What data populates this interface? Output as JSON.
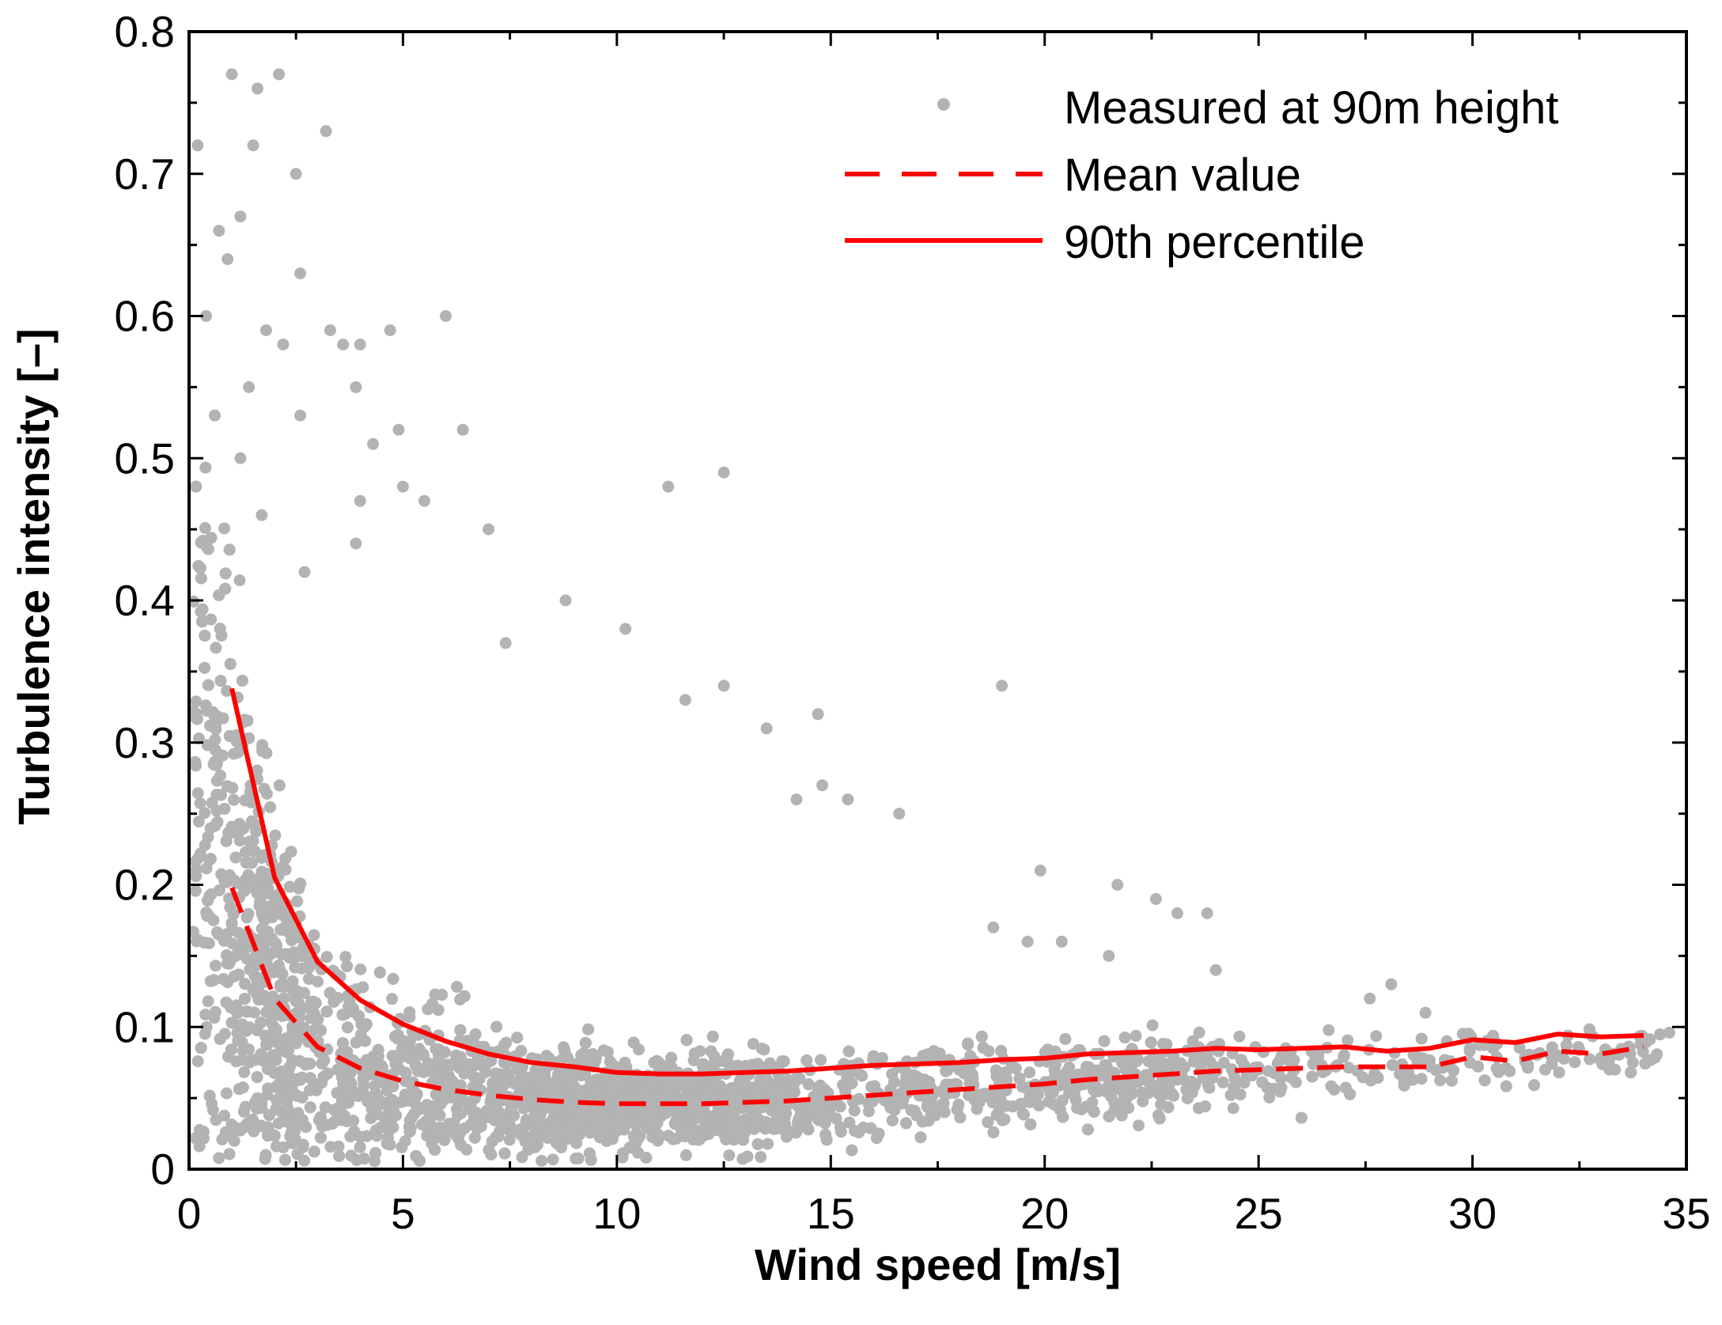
{
  "chart_data": {
    "type": "scatter",
    "title": "",
    "xlabel": "Wind speed [m/s]",
    "ylabel": "Turbulence intensity [–]",
    "xlim": [
      0,
      35
    ],
    "ylim": [
      0,
      0.8
    ],
    "x_ticks": [
      0,
      5,
      10,
      15,
      20,
      25,
      30,
      35
    ],
    "x_tick_labels": [
      "0",
      "5",
      "10",
      "15",
      "20",
      "25",
      "30",
      "35"
    ],
    "y_ticks": [
      0,
      0.1,
      0.2,
      0.3,
      0.4,
      0.5,
      0.6,
      0.7,
      0.8
    ],
    "y_tick_labels": [
      "0",
      "0.1",
      "0.2",
      "0.3",
      "0.4",
      "0.5",
      "0.6",
      "0.7",
      "0.8"
    ],
    "grid": false,
    "legend_position": "top-right",
    "colors": {
      "scatter": "#b3b3b3",
      "mean": "#ff0000",
      "percentile": "#ff0000"
    },
    "series": [
      {
        "name": "Measured at 90m height",
        "type": "scatter",
        "note": "dense measured cloud, representative sample",
        "points": [
          [
            0.2,
            0.72
          ],
          [
            1.0,
            0.77
          ],
          [
            1.6,
            0.76
          ],
          [
            2.1,
            0.77
          ],
          [
            1.5,
            0.72
          ],
          [
            3.2,
            0.73
          ],
          [
            0.7,
            0.66
          ],
          [
            1.2,
            0.67
          ],
          [
            0.9,
            0.64
          ],
          [
            2.5,
            0.7
          ],
          [
            0.4,
            0.6
          ],
          [
            2.6,
            0.63
          ],
          [
            6.0,
            0.6
          ],
          [
            1.8,
            0.59
          ],
          [
            2.2,
            0.58
          ],
          [
            3.3,
            0.59
          ],
          [
            4.0,
            0.58
          ],
          [
            4.7,
            0.59
          ],
          [
            3.6,
            0.58
          ],
          [
            3.9,
            0.55
          ],
          [
            6.4,
            0.52
          ],
          [
            2.6,
            0.53
          ],
          [
            4.9,
            0.52
          ],
          [
            4.3,
            0.51
          ],
          [
            1.4,
            0.55
          ],
          [
            0.6,
            0.53
          ],
          [
            1.2,
            0.5
          ],
          [
            5.0,
            0.48
          ],
          [
            11.2,
            0.48
          ],
          [
            12.5,
            0.49
          ],
          [
            1.7,
            0.46
          ],
          [
            4.0,
            0.47
          ],
          [
            5.5,
            0.47
          ],
          [
            3.9,
            0.44
          ],
          [
            7.0,
            0.45
          ],
          [
            2.7,
            0.42
          ],
          [
            8.8,
            0.4
          ],
          [
            10.2,
            0.38
          ],
          [
            7.4,
            0.37
          ],
          [
            19.0,
            0.34
          ],
          [
            12.5,
            0.34
          ],
          [
            13.5,
            0.31
          ],
          [
            14.7,
            0.32
          ],
          [
            11.6,
            0.33
          ],
          [
            16.6,
            0.25
          ],
          [
            14.8,
            0.27
          ],
          [
            15.4,
            0.26
          ],
          [
            14.2,
            0.26
          ],
          [
            19.9,
            0.21
          ],
          [
            21.7,
            0.2
          ],
          [
            22.6,
            0.19
          ],
          [
            23.1,
            0.18
          ],
          [
            23.8,
            0.18
          ],
          [
            18.8,
            0.17
          ],
          [
            19.6,
            0.16
          ],
          [
            20.4,
            0.16
          ],
          [
            21.5,
            0.15
          ],
          [
            24.0,
            0.14
          ],
          [
            28.1,
            0.13
          ],
          [
            27.6,
            0.12
          ],
          [
            28.9,
            0.11
          ],
          [
            29.4,
            0.09
          ],
          [
            32.0,
            0.08
          ],
          [
            34.6,
            0.096
          ],
          [
            33.2,
            0.07
          ],
          [
            31.7,
            0.07
          ]
        ]
      },
      {
        "name": "Mean value",
        "type": "line",
        "style": "dashed",
        "x": [
          1,
          2,
          3,
          4,
          5,
          6,
          7,
          8,
          9,
          10,
          11,
          12,
          13,
          14,
          15,
          16,
          17,
          18,
          19,
          20,
          21,
          22,
          23,
          24,
          25,
          26,
          27,
          28,
          29,
          30,
          31,
          32,
          33,
          34
        ],
        "y": [
          0.198,
          0.12,
          0.086,
          0.071,
          0.062,
          0.056,
          0.052,
          0.049,
          0.047,
          0.046,
          0.046,
          0.046,
          0.047,
          0.048,
          0.05,
          0.052,
          0.054,
          0.056,
          0.058,
          0.06,
          0.063,
          0.065,
          0.067,
          0.069,
          0.07,
          0.071,
          0.072,
          0.072,
          0.072,
          0.079,
          0.076,
          0.083,
          0.081,
          0.086
        ]
      },
      {
        "name": "90th percentile",
        "type": "line",
        "style": "solid",
        "x": [
          1,
          2,
          3,
          4,
          5,
          6,
          7,
          8,
          9,
          10,
          11,
          12,
          13,
          14,
          15,
          16,
          17,
          18,
          19,
          20,
          21,
          22,
          23,
          24,
          25,
          26,
          27,
          28,
          29,
          30,
          31,
          32,
          33,
          34
        ],
        "y": [
          0.338,
          0.205,
          0.146,
          0.119,
          0.102,
          0.09,
          0.081,
          0.075,
          0.072,
          0.068,
          0.067,
          0.067,
          0.068,
          0.069,
          0.071,
          0.073,
          0.074,
          0.075,
          0.077,
          0.078,
          0.081,
          0.082,
          0.083,
          0.085,
          0.084,
          0.085,
          0.086,
          0.083,
          0.085,
          0.091,
          0.089,
          0.095,
          0.093,
          0.094
        ]
      }
    ]
  }
}
